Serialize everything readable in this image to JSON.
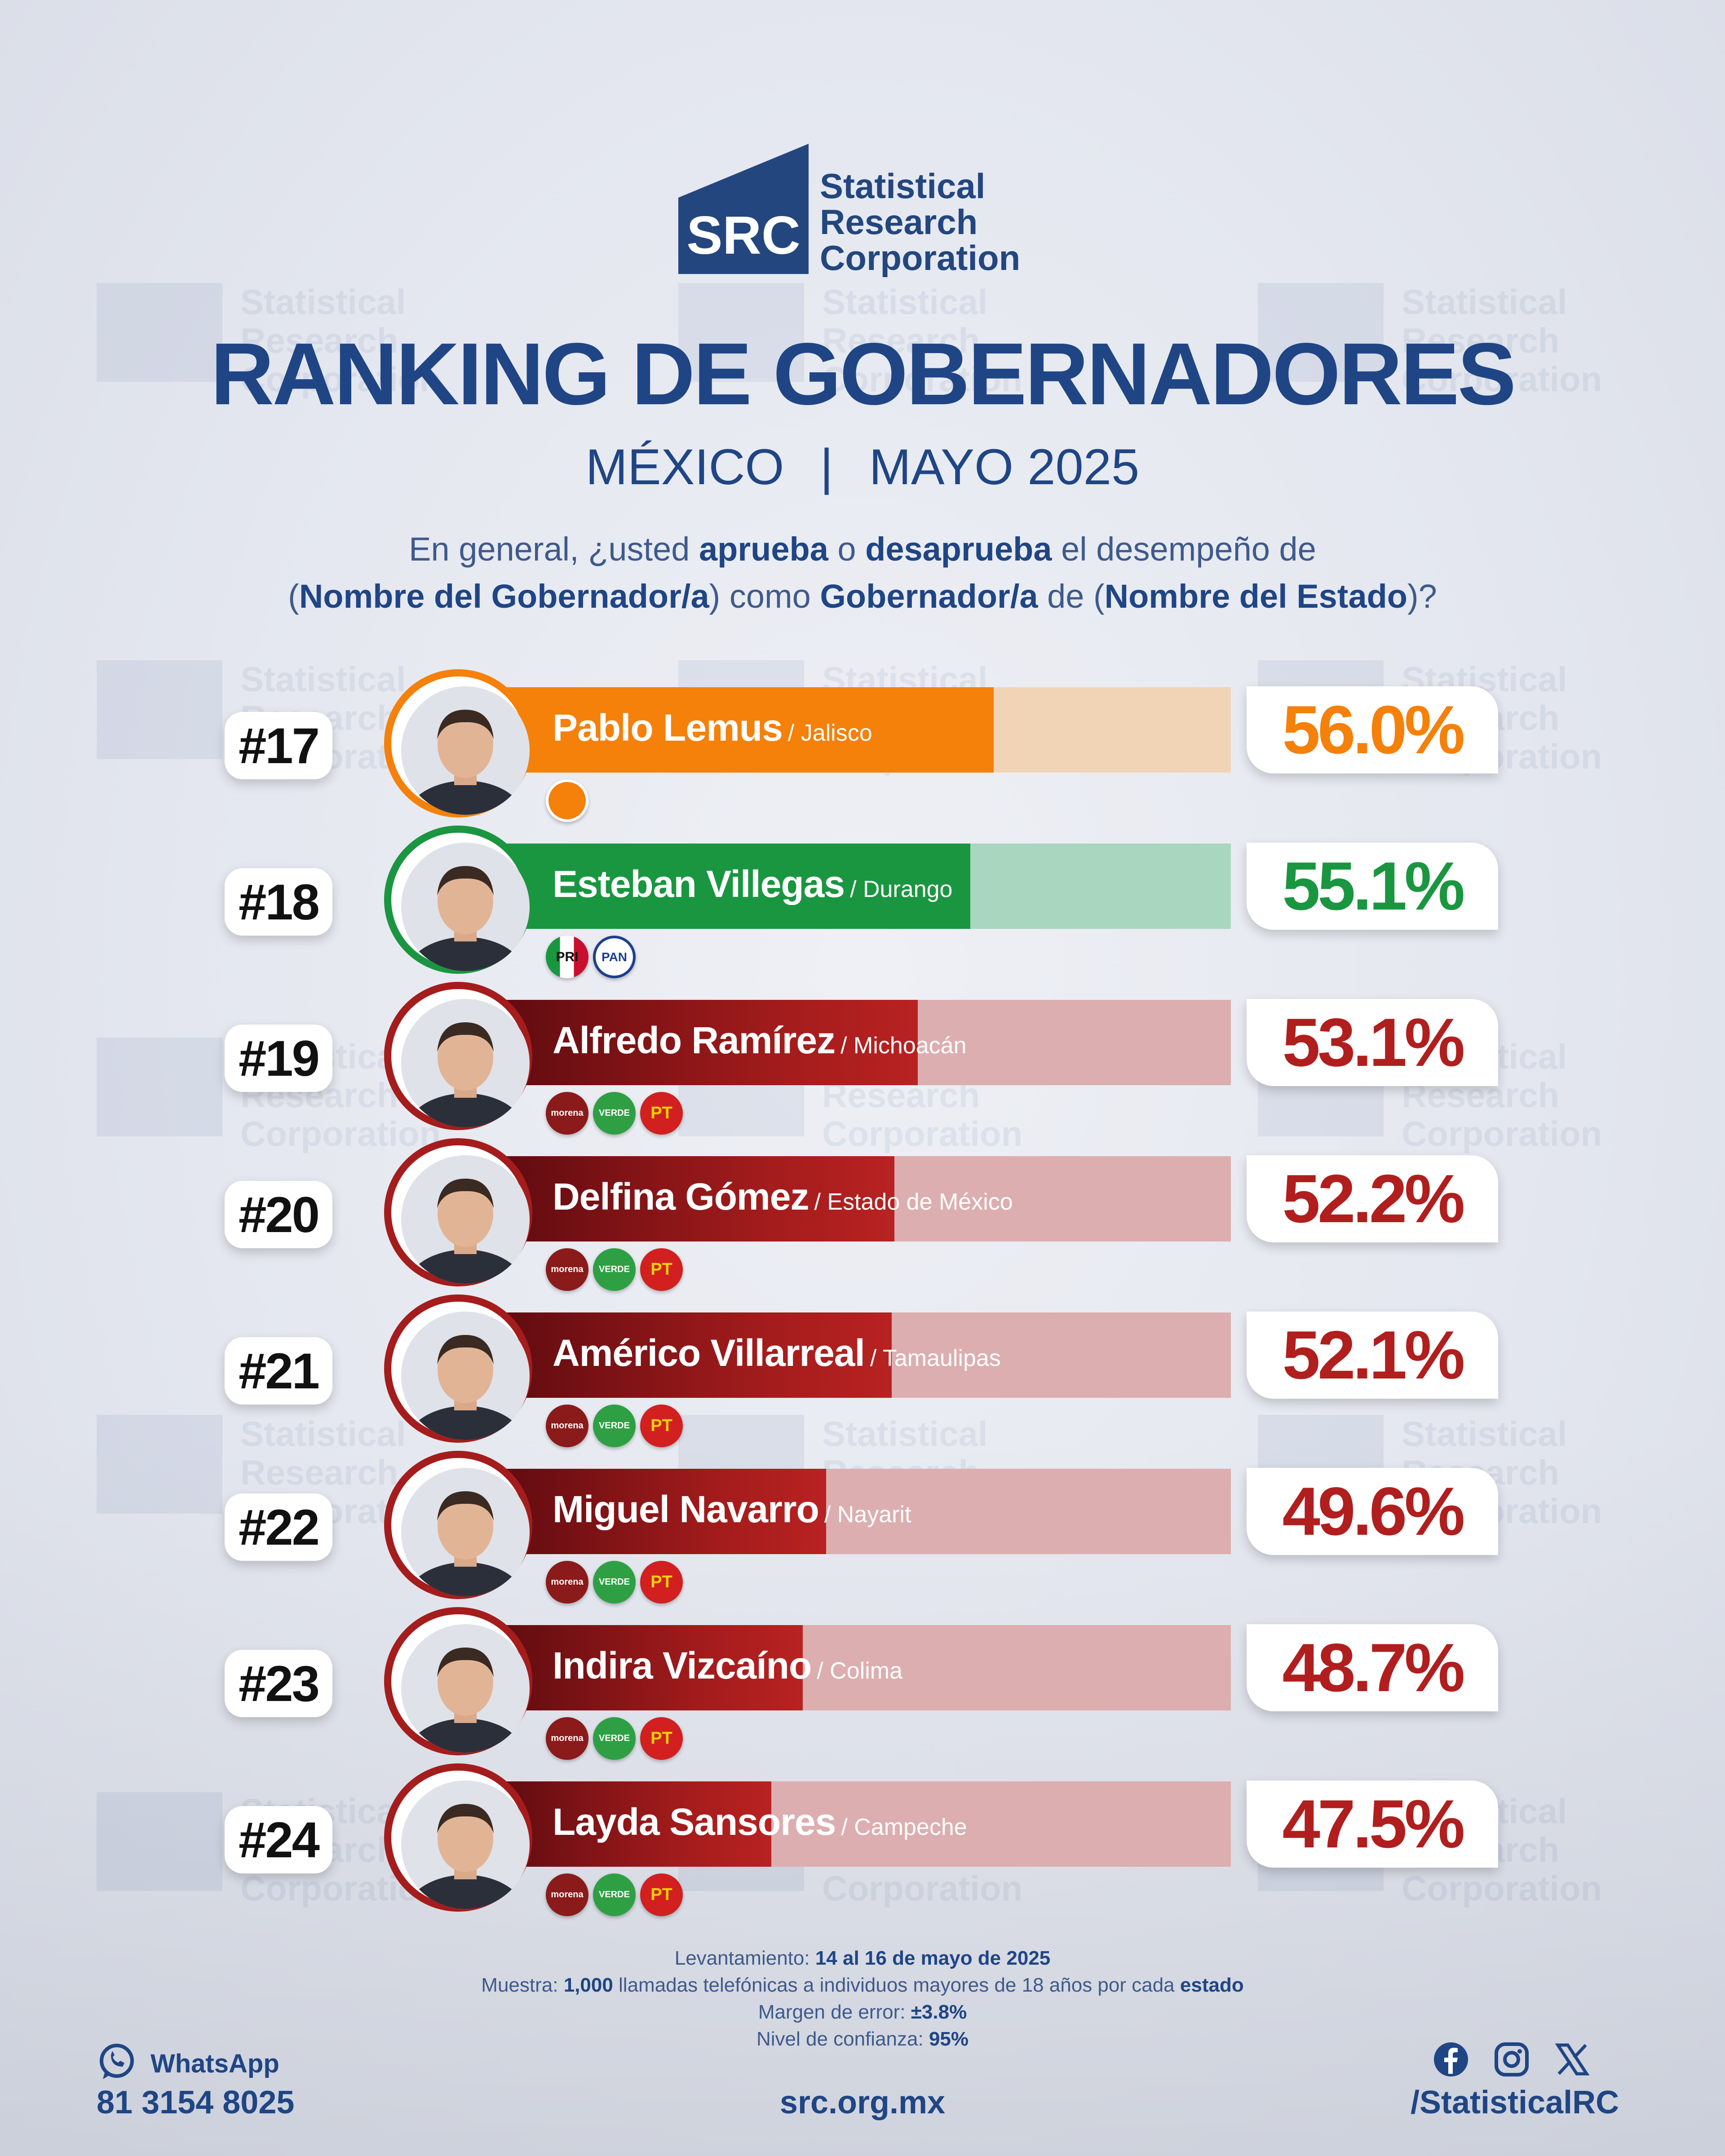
{
  "brand": {
    "line1": "Statistical",
    "line2": "Research",
    "line3": "Corporation",
    "mark": "SRC"
  },
  "title": "RANKING DE GOBERNADORES",
  "subtitle": {
    "country": "MÉXICO",
    "separator": "|",
    "date": "MAYO 2025"
  },
  "question": {
    "p1": "En general, ¿usted ",
    "b1": "aprueba",
    "p2": " o ",
    "b2": "desaprueba",
    "p3": " el desempeño de",
    "p4": "(",
    "b3": "Nombre del Gobernador/a",
    "p5": ") como ",
    "b4": "Gobernador/a",
    "p6": " de (",
    "b5": "Nombre del Estado",
    "p7": ")?"
  },
  "chart_data": {
    "type": "bar",
    "title": "RANKING DE GOBERNADORES",
    "categories": [
      "Pablo Lemus",
      "Esteban Villegas",
      "Alfredo Ramírez",
      "Delfina Gómez",
      "Américo Villarreal",
      "Miguel Navarro",
      "Indira Vizcaíno",
      "Layda Sansores"
    ],
    "values": [
      56.0,
      55.1,
      53.1,
      52.2,
      52.1,
      49.6,
      48.7,
      47.5
    ],
    "ylim": [
      0,
      100
    ],
    "unit": "%",
    "rows": [
      {
        "rank": "#17",
        "name": "Pablo Lemus",
        "state": "/ Jalisco",
        "value": 56.0,
        "label": "56.0%",
        "parties": [
          "mc"
        ],
        "color": "#f5800a",
        "light": "#f1d4b6",
        "text": "#f5800a"
      },
      {
        "rank": "#18",
        "name": "Esteban Villegas",
        "state": "/ Durango",
        "value": 55.1,
        "label": "55.1%",
        "parties": [
          "pri",
          "pan"
        ],
        "color": "#1a9640",
        "light": "#a9d6bf",
        "text": "#1a9640"
      },
      {
        "rank": "#19",
        "name": "Alfredo Ramírez",
        "state": "/ Michoacán",
        "value": 53.1,
        "label": "53.1%",
        "parties": [
          "morena",
          "verde",
          "pt"
        ],
        "color": "#a51c1c",
        "light": "#dcaeb0",
        "text": "#b01e1e"
      },
      {
        "rank": "#20",
        "name": "Delfina Gómez",
        "state": "/ Estado de México",
        "value": 52.2,
        "label": "52.2%",
        "parties": [
          "morena",
          "verde",
          "pt"
        ],
        "color": "#a51c1c",
        "light": "#dcaeb0",
        "text": "#b01e1e"
      },
      {
        "rank": "#21",
        "name": "Américo Villarreal",
        "state": "/ Tamaulipas",
        "value": 52.1,
        "label": "52.1%",
        "parties": [
          "morena",
          "verde",
          "pt"
        ],
        "color": "#a51c1c",
        "light": "#dcaeb0",
        "text": "#b01e1e"
      },
      {
        "rank": "#22",
        "name": "Miguel Navarro",
        "state": "/ Nayarit",
        "value": 49.6,
        "label": "49.6%",
        "parties": [
          "morena",
          "verde",
          "pt"
        ],
        "color": "#a51c1c",
        "light": "#dcaeb0",
        "text": "#b01e1e"
      },
      {
        "rank": "#23",
        "name": "Indira Vizcaíno",
        "state": "/ Colima",
        "value": 48.7,
        "label": "48.7%",
        "parties": [
          "morena",
          "verde",
          "pt"
        ],
        "color": "#a51c1c",
        "light": "#dcaeb0",
        "text": "#b01e1e"
      },
      {
        "rank": "#24",
        "name": "Layda Sansores",
        "state": "/ Campeche",
        "value": 47.5,
        "label": "47.5%",
        "parties": [
          "morena",
          "verde",
          "pt"
        ],
        "color": "#a51c1c",
        "light": "#dcaeb0",
        "text": "#b01e1e"
      }
    ]
  },
  "party_labels": {
    "mc": "",
    "pri": "PRI",
    "pan": "PAN",
    "morena": "morena",
    "verde": "VERDE",
    "pt": "PT"
  },
  "footnote": {
    "l1a": "Levantamiento: ",
    "l1b": "14 al 16 de mayo de 2025",
    "l2a": "Muestra: ",
    "l2b": "1,000",
    "l2c": " llamadas telefónicas a individuos mayores de 18 años por cada ",
    "l2d": "estado",
    "l3a": "Margen de error: ",
    "l3b": "±3.8%",
    "l4a": "Nivel de confianza: ",
    "l4b": "95%"
  },
  "footer": {
    "whatsapp_label": "WhatsApp",
    "phone": "81 3154 8025",
    "site": "src.org.mx",
    "handle": "/StatisticalRC"
  },
  "icons": [
    "whatsapp-icon",
    "facebook-icon",
    "instagram-icon",
    "x-icon"
  ]
}
